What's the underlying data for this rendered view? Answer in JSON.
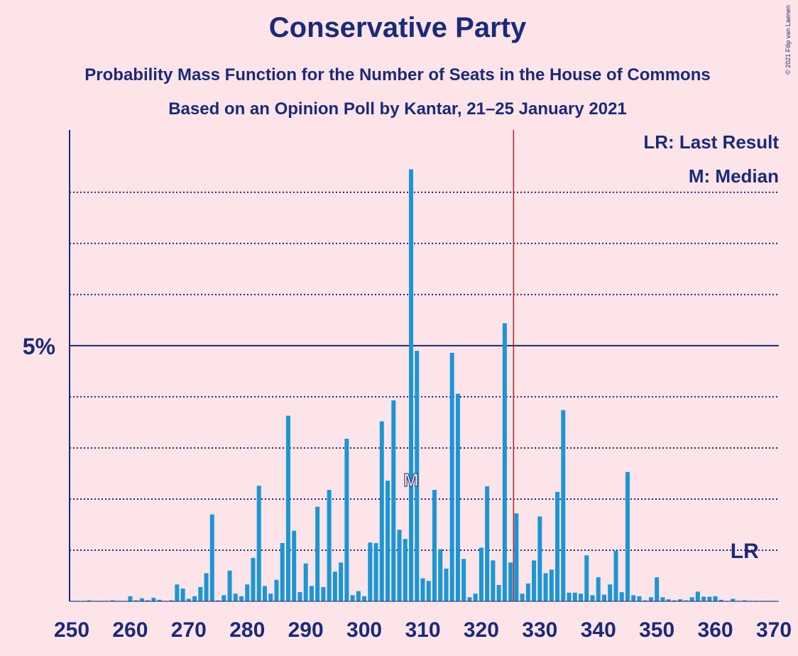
{
  "chart_data": {
    "type": "bar",
    "title": "Conservative Party",
    "subtitle": "Probability Mass Function for the Number of Seats in the House of Commons",
    "subtitle2": "Based on an Opinion Poll by Kantar, 21–25 January 2021",
    "credit": "© 2021 Filip van Laenen",
    "legend": [
      "LR: Last Result",
      "M: Median"
    ],
    "color": "#1b96d4",
    "x": [
      250,
      251,
      252,
      253,
      254,
      255,
      256,
      257,
      258,
      259,
      260,
      261,
      262,
      263,
      264,
      265,
      266,
      267,
      268,
      269,
      270,
      271,
      272,
      273,
      274,
      275,
      276,
      277,
      278,
      279,
      280,
      281,
      282,
      283,
      284,
      285,
      286,
      287,
      288,
      289,
      290,
      291,
      292,
      293,
      294,
      295,
      296,
      297,
      298,
      299,
      300,
      301,
      302,
      303,
      304,
      305,
      306,
      307,
      308,
      309,
      310,
      311,
      312,
      313,
      314,
      315,
      316,
      317,
      318,
      319,
      320,
      321,
      322,
      323,
      324,
      325,
      326,
      327,
      328,
      329,
      330,
      331,
      332,
      333,
      334,
      335,
      336,
      337,
      338,
      339,
      340,
      341,
      342,
      343,
      344,
      345,
      346,
      347,
      348,
      349,
      350,
      351,
      352,
      353,
      354,
      355,
      356,
      357,
      358,
      359,
      360,
      361,
      362,
      363,
      364,
      365,
      366,
      367,
      368,
      369,
      370
    ],
    "values": [
      0.01,
      0.01,
      0.01,
      0.02,
      0.01,
      0.01,
      0.01,
      0.02,
      0.01,
      0.01,
      0.1,
      0.02,
      0.06,
      0.02,
      0.07,
      0.03,
      0.01,
      0.02,
      0.33,
      0.25,
      0.05,
      0.1,
      0.28,
      0.55,
      1.7,
      0.02,
      0.12,
      0.6,
      0.15,
      0.1,
      0.33,
      0.85,
      2.26,
      0.3,
      0.15,
      0.42,
      1.14,
      3.63,
      1.38,
      0.18,
      0.74,
      0.3,
      1.85,
      0.28,
      2.18,
      0.58,
      0.76,
      3.18,
      0.12,
      0.2,
      0.1,
      1.15,
      1.14,
      3.52,
      2.36,
      3.93,
      1.4,
      1.22,
      8.45,
      4.9,
      0.45,
      0.4,
      2.18,
      1.02,
      0.64,
      4.86,
      4.06,
      0.83,
      0.08,
      0.15,
      1.05,
      2.25,
      0.8,
      0.32,
      5.44,
      0.76,
      1.72,
      0.15,
      0.35,
      0.8,
      1.66,
      0.55,
      0.62,
      2.14,
      3.74,
      0.17,
      0.17,
      0.15,
      0.9,
      0.12,
      0.47,
      0.13,
      0.33,
      0.99,
      0.18,
      2.53,
      0.12,
      0.1,
      0.02,
      0.08,
      0.47,
      0.08,
      0.04,
      0.02,
      0.04,
      0.02,
      0.08,
      0.19,
      0.09,
      0.09,
      0.1,
      0.03,
      0.01,
      0.05,
      0.01,
      0.02,
      0.01,
      0.01,
      0.01,
      0.01,
      0.01
    ],
    "xlim": [
      250,
      370
    ],
    "xticks": [
      250,
      260,
      270,
      280,
      290,
      300,
      310,
      320,
      330,
      340,
      350,
      360,
      370
    ],
    "ylim": [
      0,
      9.22
    ],
    "yticks": [
      {
        "value": 5,
        "label": "5%"
      }
    ],
    "dotted_grid": [
      1,
      2,
      3,
      4,
      6,
      7,
      8
    ],
    "majority_seat": 326,
    "median_seat": 308,
    "median_marker": "M",
    "last_result_seat": 365,
    "last_result_marker": "LR"
  }
}
